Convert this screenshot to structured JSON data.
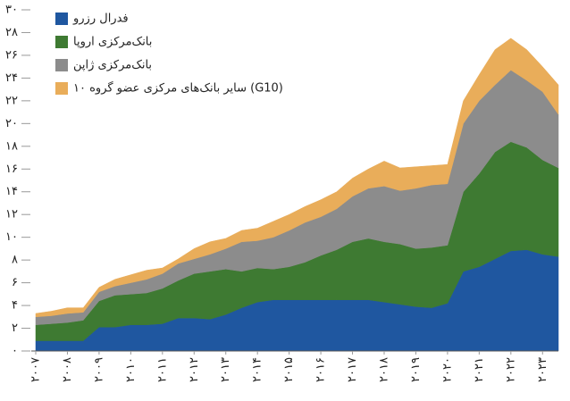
{
  "chart_data": {
    "type": "stacked_area",
    "categories": [
      "۲۰۰۷",
      null,
      "۲۰۰۸",
      null,
      "۲۰۰۹",
      null,
      "۲۰۱۰",
      null,
      "۲۰۱۱",
      null,
      "۲۰۱۲",
      null,
      "۲۰۱۳",
      null,
      "۲۰۱۴",
      null,
      "۲۰۱۵",
      null,
      "۲۰۱۶",
      null,
      "۲۰۱۷",
      null,
      "۲۰۱۸",
      null,
      "۲۰۱۹",
      null,
      "۲۰۲۰",
      null,
      "۲۰۲۱",
      null,
      "۲۰۲۲",
      null,
      "۲۰۲۳",
      null
    ],
    "series": [
      {
        "name": "فدرال رزرو",
        "color": "#1f57a0",
        "values": [
          0.9,
          0.9,
          0.9,
          0.9,
          2.1,
          2.1,
          2.3,
          2.3,
          2.4,
          2.9,
          2.9,
          2.8,
          3.2,
          3.8,
          4.3,
          4.5,
          4.5,
          4.5,
          4.5,
          4.5,
          4.5,
          4.5,
          4.3,
          4.1,
          3.9,
          3.8,
          4.2,
          7.0,
          7.4,
          8.1,
          8.8,
          8.9,
          8.5,
          8.3
        ]
      },
      {
        "name": "بانک‌مرکزی اروپا",
        "color": "#3e7a32",
        "values": [
          1.4,
          1.5,
          1.6,
          1.8,
          2.3,
          2.8,
          2.7,
          2.8,
          3.1,
          3.3,
          3.9,
          4.2,
          4.0,
          3.2,
          3.0,
          2.7,
          2.9,
          3.3,
          3.9,
          4.4,
          5.1,
          5.4,
          5.3,
          5.3,
          5.1,
          5.3,
          5.1,
          7.0,
          8.2,
          9.4,
          9.6,
          9.0,
          8.3,
          7.8
        ]
      },
      {
        "name": "بانک‌مرکزی ژاپن",
        "color": "#8c8c8c",
        "values": [
          0.7,
          0.7,
          0.8,
          0.7,
          0.8,
          0.8,
          1.0,
          1.2,
          1.3,
          1.5,
          1.3,
          1.5,
          1.8,
          2.6,
          2.4,
          2.8,
          3.2,
          3.5,
          3.4,
          3.6,
          4.0,
          4.4,
          4.9,
          4.7,
          5.3,
          5.5,
          5.4,
          6.0,
          6.4,
          5.9,
          6.3,
          5.9,
          6.0,
          4.7
        ]
      },
      {
        "name": "سایر بانک‌های مرکزی عضو گروه ۱۰ (G10)",
        "color": "#e9ad5a",
        "values": [
          0.3,
          0.4,
          0.5,
          0.4,
          0.4,
          0.6,
          0.7,
          0.8,
          0.5,
          0.4,
          0.9,
          1.1,
          0.9,
          1.0,
          1.1,
          1.4,
          1.4,
          1.4,
          1.5,
          1.5,
          1.6,
          1.7,
          2.2,
          2.0,
          1.9,
          1.7,
          1.7,
          2.0,
          2.3,
          3.1,
          2.8,
          2.7,
          2.2,
          2.6
        ]
      }
    ],
    "ylim": [
      0,
      30
    ],
    "yticks": [
      {
        "value": 0,
        "label": "۰"
      },
      {
        "value": 2,
        "label": "۲"
      },
      {
        "value": 4,
        "label": "۴"
      },
      {
        "value": 6,
        "label": "۶"
      },
      {
        "value": 8,
        "label": "۸"
      },
      {
        "value": 10,
        "label": "۱۰"
      },
      {
        "value": 12,
        "label": "۱۲"
      },
      {
        "value": 14,
        "label": "۱۴"
      },
      {
        "value": 16,
        "label": "۱۶"
      },
      {
        "value": 18,
        "label": "۱۸"
      },
      {
        "value": 20,
        "label": "۲۰"
      },
      {
        "value": 22,
        "label": "۲۲"
      },
      {
        "value": 24,
        "label": "۲۴"
      },
      {
        "value": 26,
        "label": "۲۶"
      },
      {
        "value": 28,
        "label": "۲۸"
      },
      {
        "value": 30,
        "label": "۳۰"
      }
    ],
    "legend": "upper left"
  }
}
